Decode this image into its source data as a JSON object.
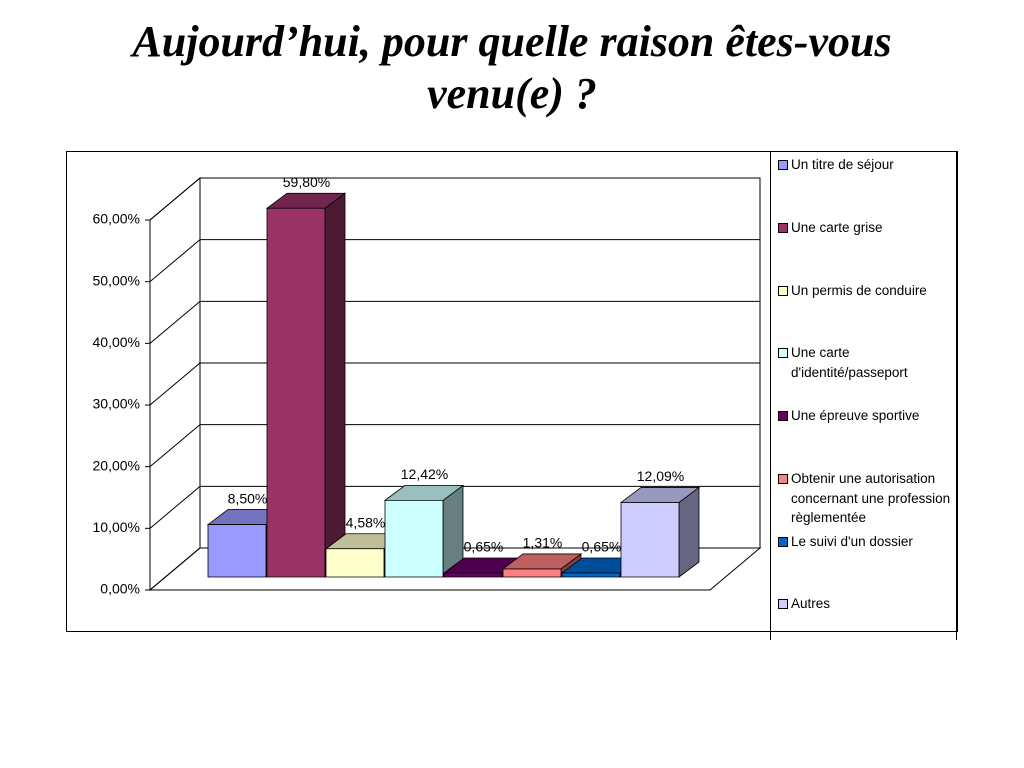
{
  "chart_data": {
    "type": "bar3d",
    "title": "Aujourd’hui, pour quelle raison êtes-vous venu(e) ?",
    "categories": [
      "Un titre de séjour",
      "Une carte grise",
      "Un permis de conduire",
      "Une carte d'identité/passeport",
      "Une épreuve sportive",
      "Obtenir une autorisation concernant une profession règlementée",
      "Le suivi d'un dossier",
      "Autres"
    ],
    "values": [
      8.5,
      59.8,
      4.58,
      12.42,
      0.65,
      1.31,
      0.65,
      12.09
    ],
    "value_labels": [
      "8,50%",
      "59,80%",
      "4,58%",
      "12,42%",
      "0,65%",
      "1,31%",
      "0,65%",
      "12,09%"
    ],
    "colors": [
      "#9999ff",
      "#993366",
      "#ffffcc",
      "#ccffff",
      "#660066",
      "#ff8080",
      "#0066cc",
      "#ccccff"
    ],
    "ylim": [
      0,
      60
    ],
    "yticks": [
      {
        "value": 0,
        "label": "0,00%"
      },
      {
        "value": 10,
        "label": "10,00%"
      },
      {
        "value": 20,
        "label": "20,00%"
      },
      {
        "value": 30,
        "label": "30,00%"
      },
      {
        "value": 40,
        "label": "40,00%"
      },
      {
        "value": 50,
        "label": "50,00%"
      },
      {
        "value": 60,
        "label": "60,00%"
      }
    ],
    "grid": true,
    "legend": "right"
  }
}
